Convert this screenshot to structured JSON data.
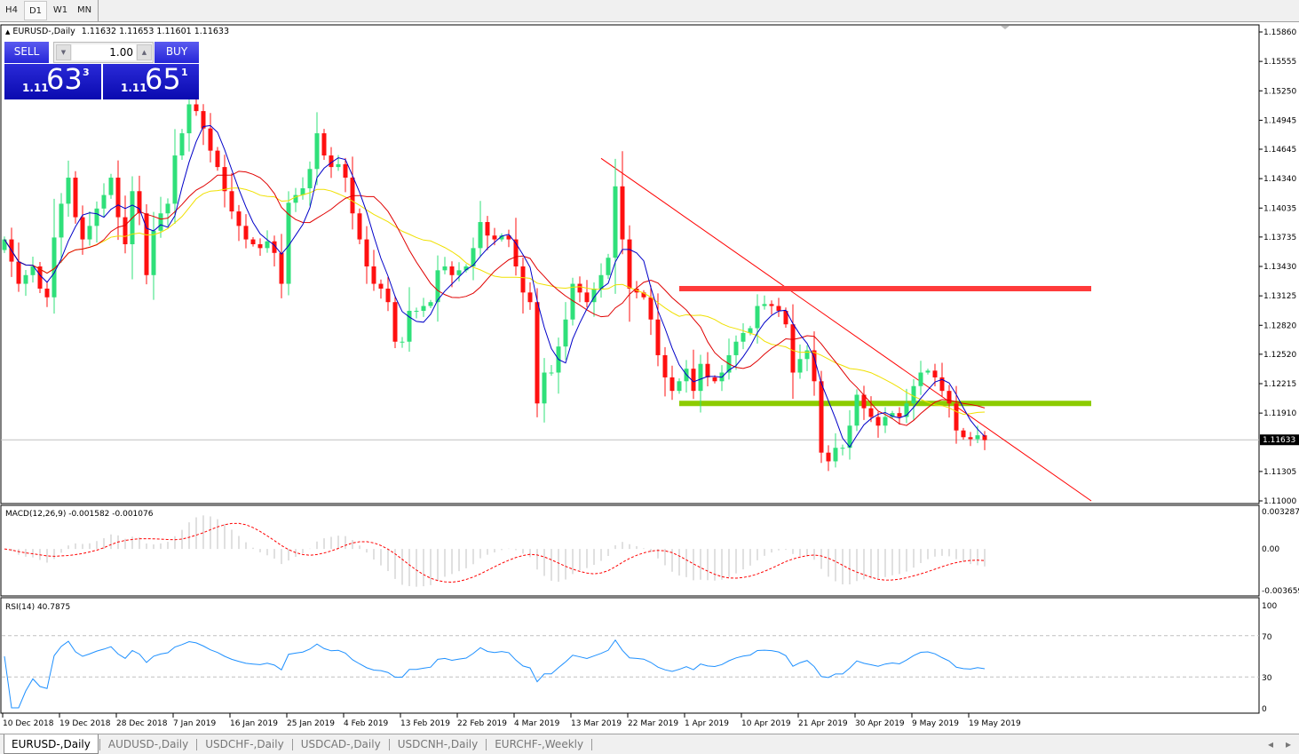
{
  "toolbar": {
    "timeframes": [
      {
        "label": "H4",
        "active": false
      },
      {
        "label": "D1",
        "active": true
      },
      {
        "label": "W1",
        "active": false
      },
      {
        "label": "MN",
        "active": false
      }
    ]
  },
  "symbol_info": {
    "title": "EURUSD-,Daily",
    "ohlc": "1.11632 1.11653 1.11601 1.11633"
  },
  "trade_panel": {
    "sell_label": "SELL",
    "buy_label": "BUY",
    "lot": "1.00",
    "sell_price": {
      "prefix": "1.11",
      "big": "63",
      "sup": "3"
    },
    "buy_price": {
      "prefix": "1.11",
      "big": "65",
      "sup": "1"
    }
  },
  "colors": {
    "bull": "#2fe07a",
    "bear": "#ff1010",
    "ma_fast": "#0000c8",
    "ma_mid": "#e00000",
    "ma_slow": "#f0e000",
    "macd_hist": "#c0c0c0",
    "macd_signal": "#ff0000",
    "rsi": "#1e90ff",
    "resistance": "#ff3b3b",
    "support": "#8ccc00",
    "trendline": "#ff0000"
  },
  "chart_data": {
    "type": "candlestick",
    "first_date": "10 Dec 2018",
    "first_open": 1.136,
    "closes": [
      1.1371,
      1.1348,
      1.1325,
      1.1334,
      1.1343,
      1.132,
      1.1311,
      1.1373,
      1.1408,
      1.1435,
      1.1394,
      1.1371,
      1.1385,
      1.1403,
      1.1417,
      1.1435,
      1.1394,
      1.1366,
      1.1421,
      1.1398,
      1.1334,
      1.138,
      1.1398,
      1.1408,
      1.1458,
      1.1481,
      1.1511,
      1.1504,
      1.1486,
      1.1463,
      1.1446,
      1.1421,
      1.14,
      1.1385,
      1.1371,
      1.1366,
      1.1362,
      1.1369,
      1.1357,
      1.1325,
      1.1409,
      1.1417,
      1.1424,
      1.1444,
      1.1481,
      1.1458,
      1.1446,
      1.1449,
      1.1435,
      1.1398,
      1.1371,
      1.1343,
      1.1325,
      1.132,
      1.1306,
      1.1265,
      1.1265,
      1.1297,
      1.1297,
      1.1302,
      1.1306,
      1.1339,
      1.1343,
      1.1334,
      1.1339,
      1.1343,
      1.1362,
      1.1389,
      1.1375,
      1.1371,
      1.1375,
      1.1371,
      1.1343,
      1.1316,
      1.1306,
      1.1201,
      1.1233,
      1.1233,
      1.126,
      1.1288,
      1.1325,
      1.1316,
      1.1306,
      1.132,
      1.1334,
      1.1352,
      1.1426,
      1.1371,
      1.132,
      1.1316,
      1.1311,
      1.1288,
      1.1251,
      1.1228,
      1.1214,
      1.1224,
      1.1237,
      1.1214,
      1.1242,
      1.1228,
      1.1224,
      1.1233,
      1.1251,
      1.1265,
      1.1274,
      1.1279,
      1.1302,
      1.1304,
      1.1302,
      1.1297,
      1.1283,
      1.1233,
      1.1247,
      1.1256,
      1.1224,
      1.115,
      1.1141,
      1.1155,
      1.1155,
      1.1178,
      1.121,
      1.1196,
      1.1187,
      1.1178,
      1.1187,
      1.1191,
      1.1187,
      1.1201,
      1.1219,
      1.1233,
      1.1235,
      1.1228,
      1.1214,
      1.1201,
      1.1173,
      1.1166,
      1.1164,
      1.1168,
      1.1163
    ],
    "current_price": "1.11633",
    "price_axis": {
      "range": [
        1.11,
        1.1586
      ],
      "ticks": [
        "1.15860",
        "1.15555",
        "1.15250",
        "1.14945",
        "1.14645",
        "1.14340",
        "1.14035",
        "1.13735",
        "1.13430",
        "1.13125",
        "1.12820",
        "1.12520",
        "1.12215",
        "1.11910",
        "1.11305",
        "1.11000"
      ]
    },
    "date_labels": [
      "10 Dec 2018",
      "19 Dec 2018",
      "28 Dec 2018",
      "7 Jan 2019",
      "16 Jan 2019",
      "25 Jan 2019",
      "4 Feb 2019",
      "13 Feb 2019",
      "22 Feb 2019",
      "4 Mar 2019",
      "13 Mar 2019",
      "22 Mar 2019",
      "1 Apr 2019",
      "10 Apr 2019",
      "21 Apr 2019",
      "30 Apr 2019",
      "9 May 2019",
      "19 May 2019"
    ],
    "drawn_lines": [
      {
        "type": "trendline",
        "from": [
          "18 Mar 2019",
          1.1455
        ],
        "to": [
          "6 Jun 2019",
          1.11
        ]
      },
      {
        "type": "resistance",
        "from": [
          "31 Mar 2019",
          1.132
        ],
        "to": [
          "6 Jun 2019",
          1.132
        ]
      },
      {
        "type": "support",
        "from": [
          "31 Mar 2019",
          1.1201
        ],
        "to": [
          "6 Jun 2019",
          1.1201
        ]
      }
    ],
    "macd": {
      "label": "MACD(12,26,9) -0.001582 -0.001076",
      "axis": [
        "0.003287",
        "0.00",
        "-0.003659"
      ],
      "range": [
        -0.003659,
        0.003287
      ]
    },
    "rsi": {
      "label": "RSI(14) 40.7875",
      "axis": [
        "100",
        "70",
        "30",
        "0"
      ],
      "levels": [
        70,
        30
      ]
    }
  },
  "tabs": [
    {
      "label": "EURUSD-,Daily",
      "active": true
    },
    {
      "label": "AUDUSD-,Daily"
    },
    {
      "label": "USDCHF-,Daily"
    },
    {
      "label": "USDCAD-,Daily"
    },
    {
      "label": "USDCNH-,Daily"
    },
    {
      "label": "EURCHF-,Weekly"
    }
  ]
}
